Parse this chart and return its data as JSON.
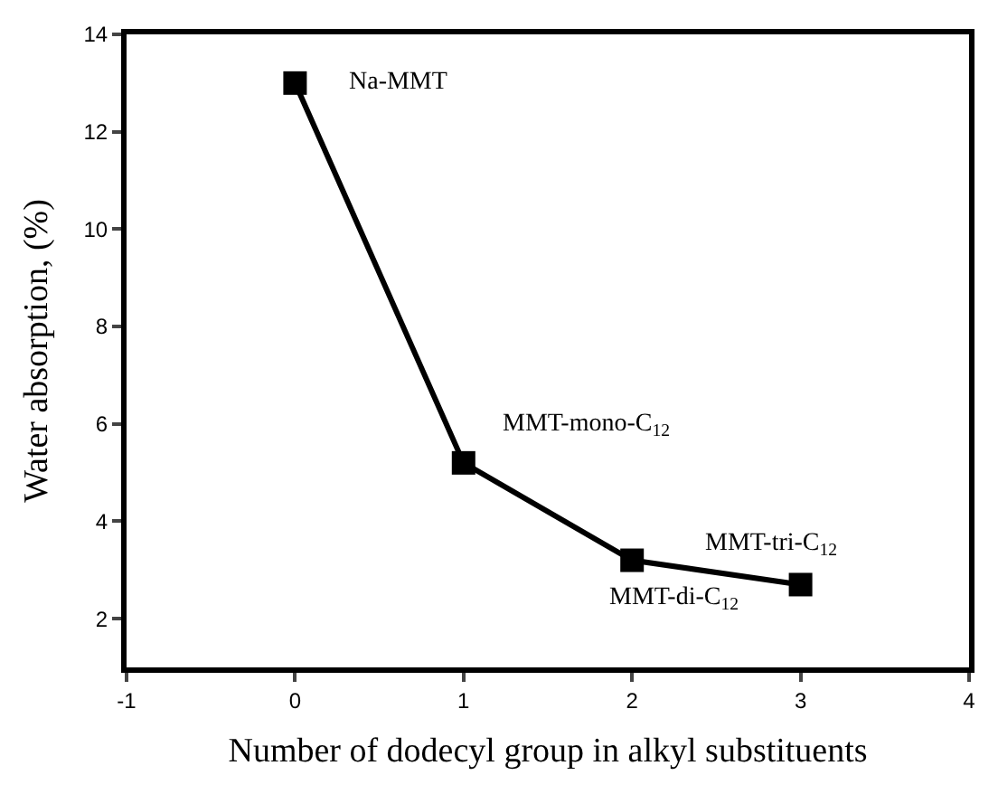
{
  "chart_data": {
    "type": "line",
    "xlabel": "Number of dodecyl group in alkyl substituents",
    "ylabel": "Water absorption, (%)",
    "x": [
      0,
      1,
      2,
      3
    ],
    "series": [
      {
        "color": "#000000",
        "values": [
          13.0,
          5.2,
          3.2,
          2.7
        ]
      }
    ],
    "xlim": [
      -1,
      4
    ],
    "xticks": [
      -1,
      0,
      1,
      2,
      3,
      4
    ],
    "ylim": [
      1,
      14
    ],
    "yticks": [
      2,
      4,
      6,
      8,
      10,
      12,
      14
    ],
    "marker": "square",
    "line_style": "solid",
    "legend": false,
    "annotations": [
      {
        "text": "Na-MMT",
        "x": 0,
        "y": 13.0
      },
      {
        "text": "MMT-mono-C$_{12}$",
        "x": 1,
        "y": 5.2
      },
      {
        "text": "MMT-di-C$_{12}$",
        "x": 2,
        "y": 3.2
      },
      {
        "text": "MMT-tri-C$_{12}$",
        "x": 3,
        "y": 2.7
      }
    ]
  }
}
